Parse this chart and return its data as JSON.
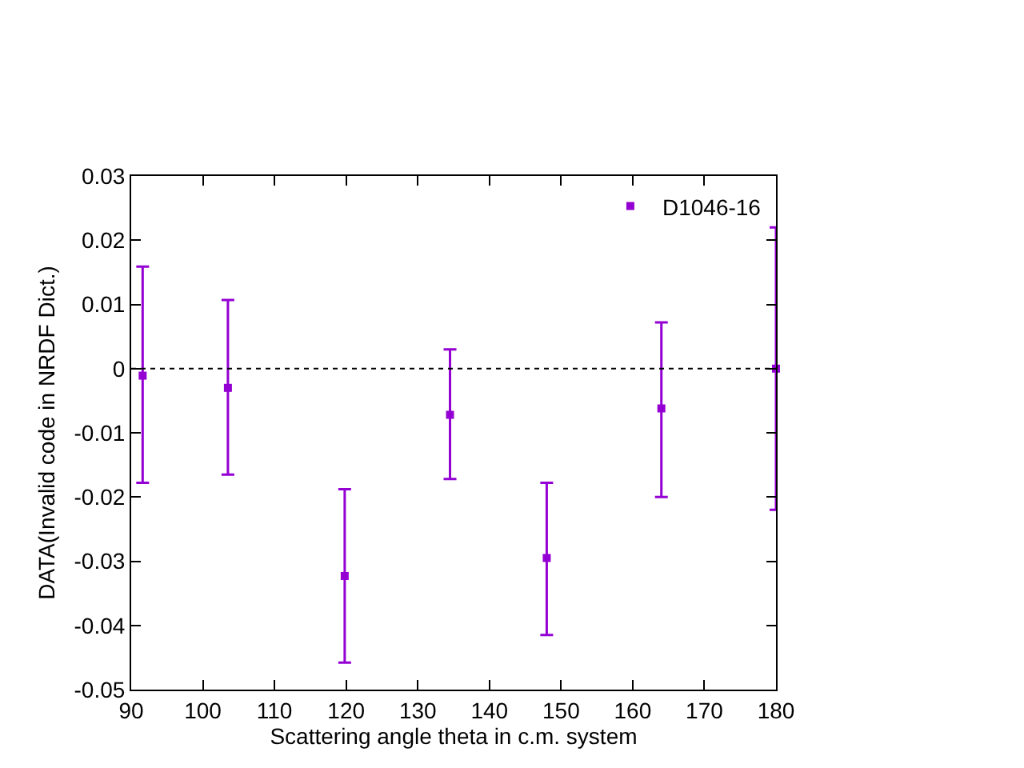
{
  "chart_data": {
    "type": "scatter",
    "xlabel": "Scattering angle theta in c.m. system",
    "ylabel": "DATA(Invalid code in NRDF Dict.)",
    "x": [
      91.6,
      103.5,
      119.8,
      134.5,
      148.0,
      164.0,
      180
    ],
    "series": [
      {
        "name": "D1046-16",
        "color": "#9400d3",
        "values": [
          -0.0011,
          -0.003,
          -0.0323,
          -0.0072,
          -0.0295,
          -0.0062,
          0
        ],
        "errors": [
          [
            -0.0178,
            0.0159
          ],
          [
            -0.0165,
            0.0107
          ],
          [
            -0.0458,
            -0.0188
          ],
          [
            -0.0172,
            0.003
          ],
          [
            -0.0415,
            -0.0178
          ],
          [
            -0.02,
            0.0072
          ],
          [
            -0.022,
            0.022
          ]
        ]
      }
    ],
    "xlim": [
      90,
      180
    ],
    "xticks": [
      90,
      100,
      110,
      120,
      130,
      140,
      150,
      160,
      170,
      180
    ],
    "ylim": [
      -0.05,
      0.03
    ],
    "yticks": [
      -0.05,
      -0.04,
      -0.03,
      -0.02,
      -0.01,
      0,
      0.01,
      0.02,
      0.03
    ],
    "ref_lines": [
      {
        "axis": "y",
        "value": 0,
        "color": "#000000",
        "line_style": "dotted"
      }
    ],
    "grid": false,
    "legend": "top right",
    "marker": "square"
  }
}
